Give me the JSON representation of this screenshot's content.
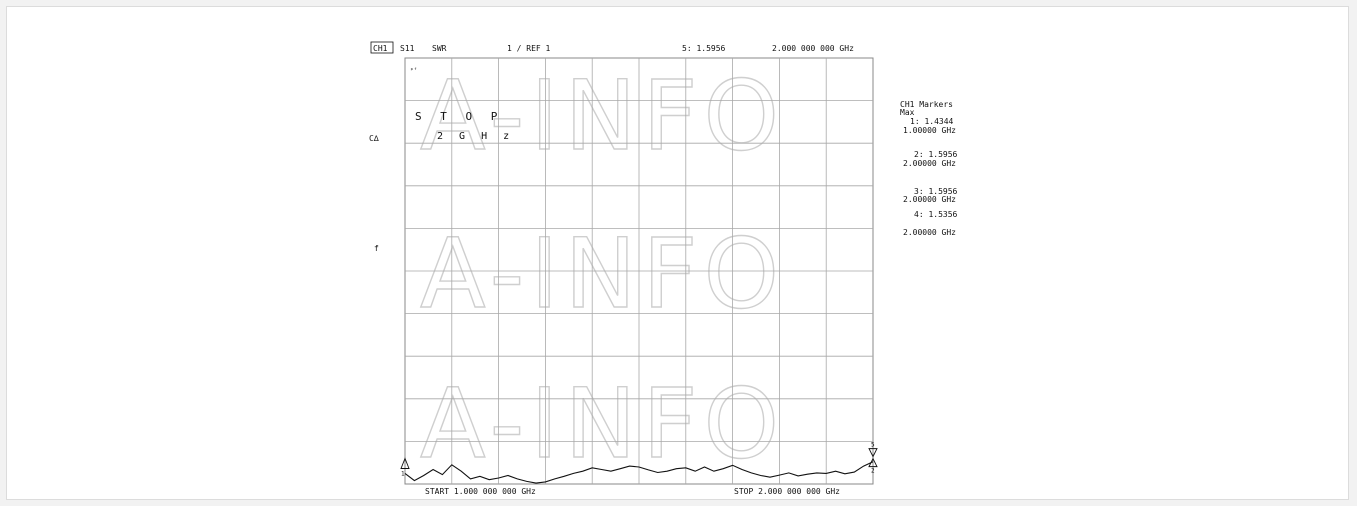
{
  "header": {
    "channel": "CH1",
    "param": "S11",
    "format": "SWR",
    "scale": "1  / REF 1",
    "active_marker": "5: 1.5956",
    "active_freq": "2.000 000 000 GHz"
  },
  "left_labels": {
    "cor": "C∆",
    "f": "f",
    "small_tag": "ᵖᶠ"
  },
  "overlay": {
    "stop_label": "S T O P",
    "stop_value": "2   G H z"
  },
  "marker_panel": {
    "title": "CH1 Markers",
    "subtitle": "Max",
    "entries": [
      {
        "label": "1: 1.4344",
        "freq": "1.00000 GHz"
      },
      {
        "label": "2: 1.5956",
        "freq": "2.00000 GHz"
      },
      {
        "label": "3: 1.5956",
        "freq": "2.00000 GHz"
      },
      {
        "label": "4: 1.5356",
        "freq": "2.00000 GHz"
      }
    ]
  },
  "footer": {
    "start": "START  1.000 000 000 GHz",
    "stop": "STOP  2.000 000 000 GHz"
  },
  "watermark": "A-INFO",
  "colors": {
    "trace": "#111111",
    "grid": "#a8a8a8",
    "watermark": "#cfcfcf"
  },
  "chart_data": {
    "type": "line",
    "title": "",
    "xlabel": "",
    "ylabel": "",
    "xlim": [
      1.0,
      2.0
    ],
    "ylim": [
      1.0,
      11.0
    ],
    "grid": true,
    "grid_divisions": {
      "x": 10,
      "y": 10
    },
    "series": [
      {
        "x": [
          1.0,
          1.02,
          1.04,
          1.06,
          1.08,
          1.1,
          1.12,
          1.14,
          1.16,
          1.18,
          1.2,
          1.22,
          1.24,
          1.26,
          1.28,
          1.3,
          1.32,
          1.34,
          1.36,
          1.38,
          1.4,
          1.42,
          1.44,
          1.46,
          1.48,
          1.5,
          1.52,
          1.54,
          1.56,
          1.58,
          1.6,
          1.62,
          1.64,
          1.66,
          1.68,
          1.7,
          1.72,
          1.74,
          1.76,
          1.78,
          1.8,
          1.82,
          1.84,
          1.86,
          1.88,
          1.9,
          1.92,
          1.94,
          1.96,
          1.98,
          2.0
        ],
        "y": [
          1.25,
          1.08,
          1.2,
          1.34,
          1.22,
          1.45,
          1.3,
          1.12,
          1.18,
          1.1,
          1.14,
          1.2,
          1.12,
          1.06,
          1.02,
          1.05,
          1.12,
          1.18,
          1.25,
          1.3,
          1.38,
          1.34,
          1.3,
          1.36,
          1.42,
          1.4,
          1.33,
          1.27,
          1.3,
          1.36,
          1.38,
          1.3,
          1.4,
          1.3,
          1.36,
          1.44,
          1.34,
          1.26,
          1.2,
          1.16,
          1.21,
          1.26,
          1.19,
          1.23,
          1.26,
          1.25,
          1.3,
          1.24,
          1.28,
          1.42,
          1.52
        ]
      }
    ],
    "markers": [
      {
        "id": "1",
        "x": 1.0,
        "y": 1.4344
      },
      {
        "id": "2",
        "x": 2.0,
        "y": 1.5956
      },
      {
        "id": "3",
        "x": 2.0,
        "y": 1.5956
      },
      {
        "id": "4",
        "x": 2.0,
        "y": 1.5356
      },
      {
        "id": "5",
        "x": 2.0,
        "y": 1.5956
      }
    ]
  }
}
